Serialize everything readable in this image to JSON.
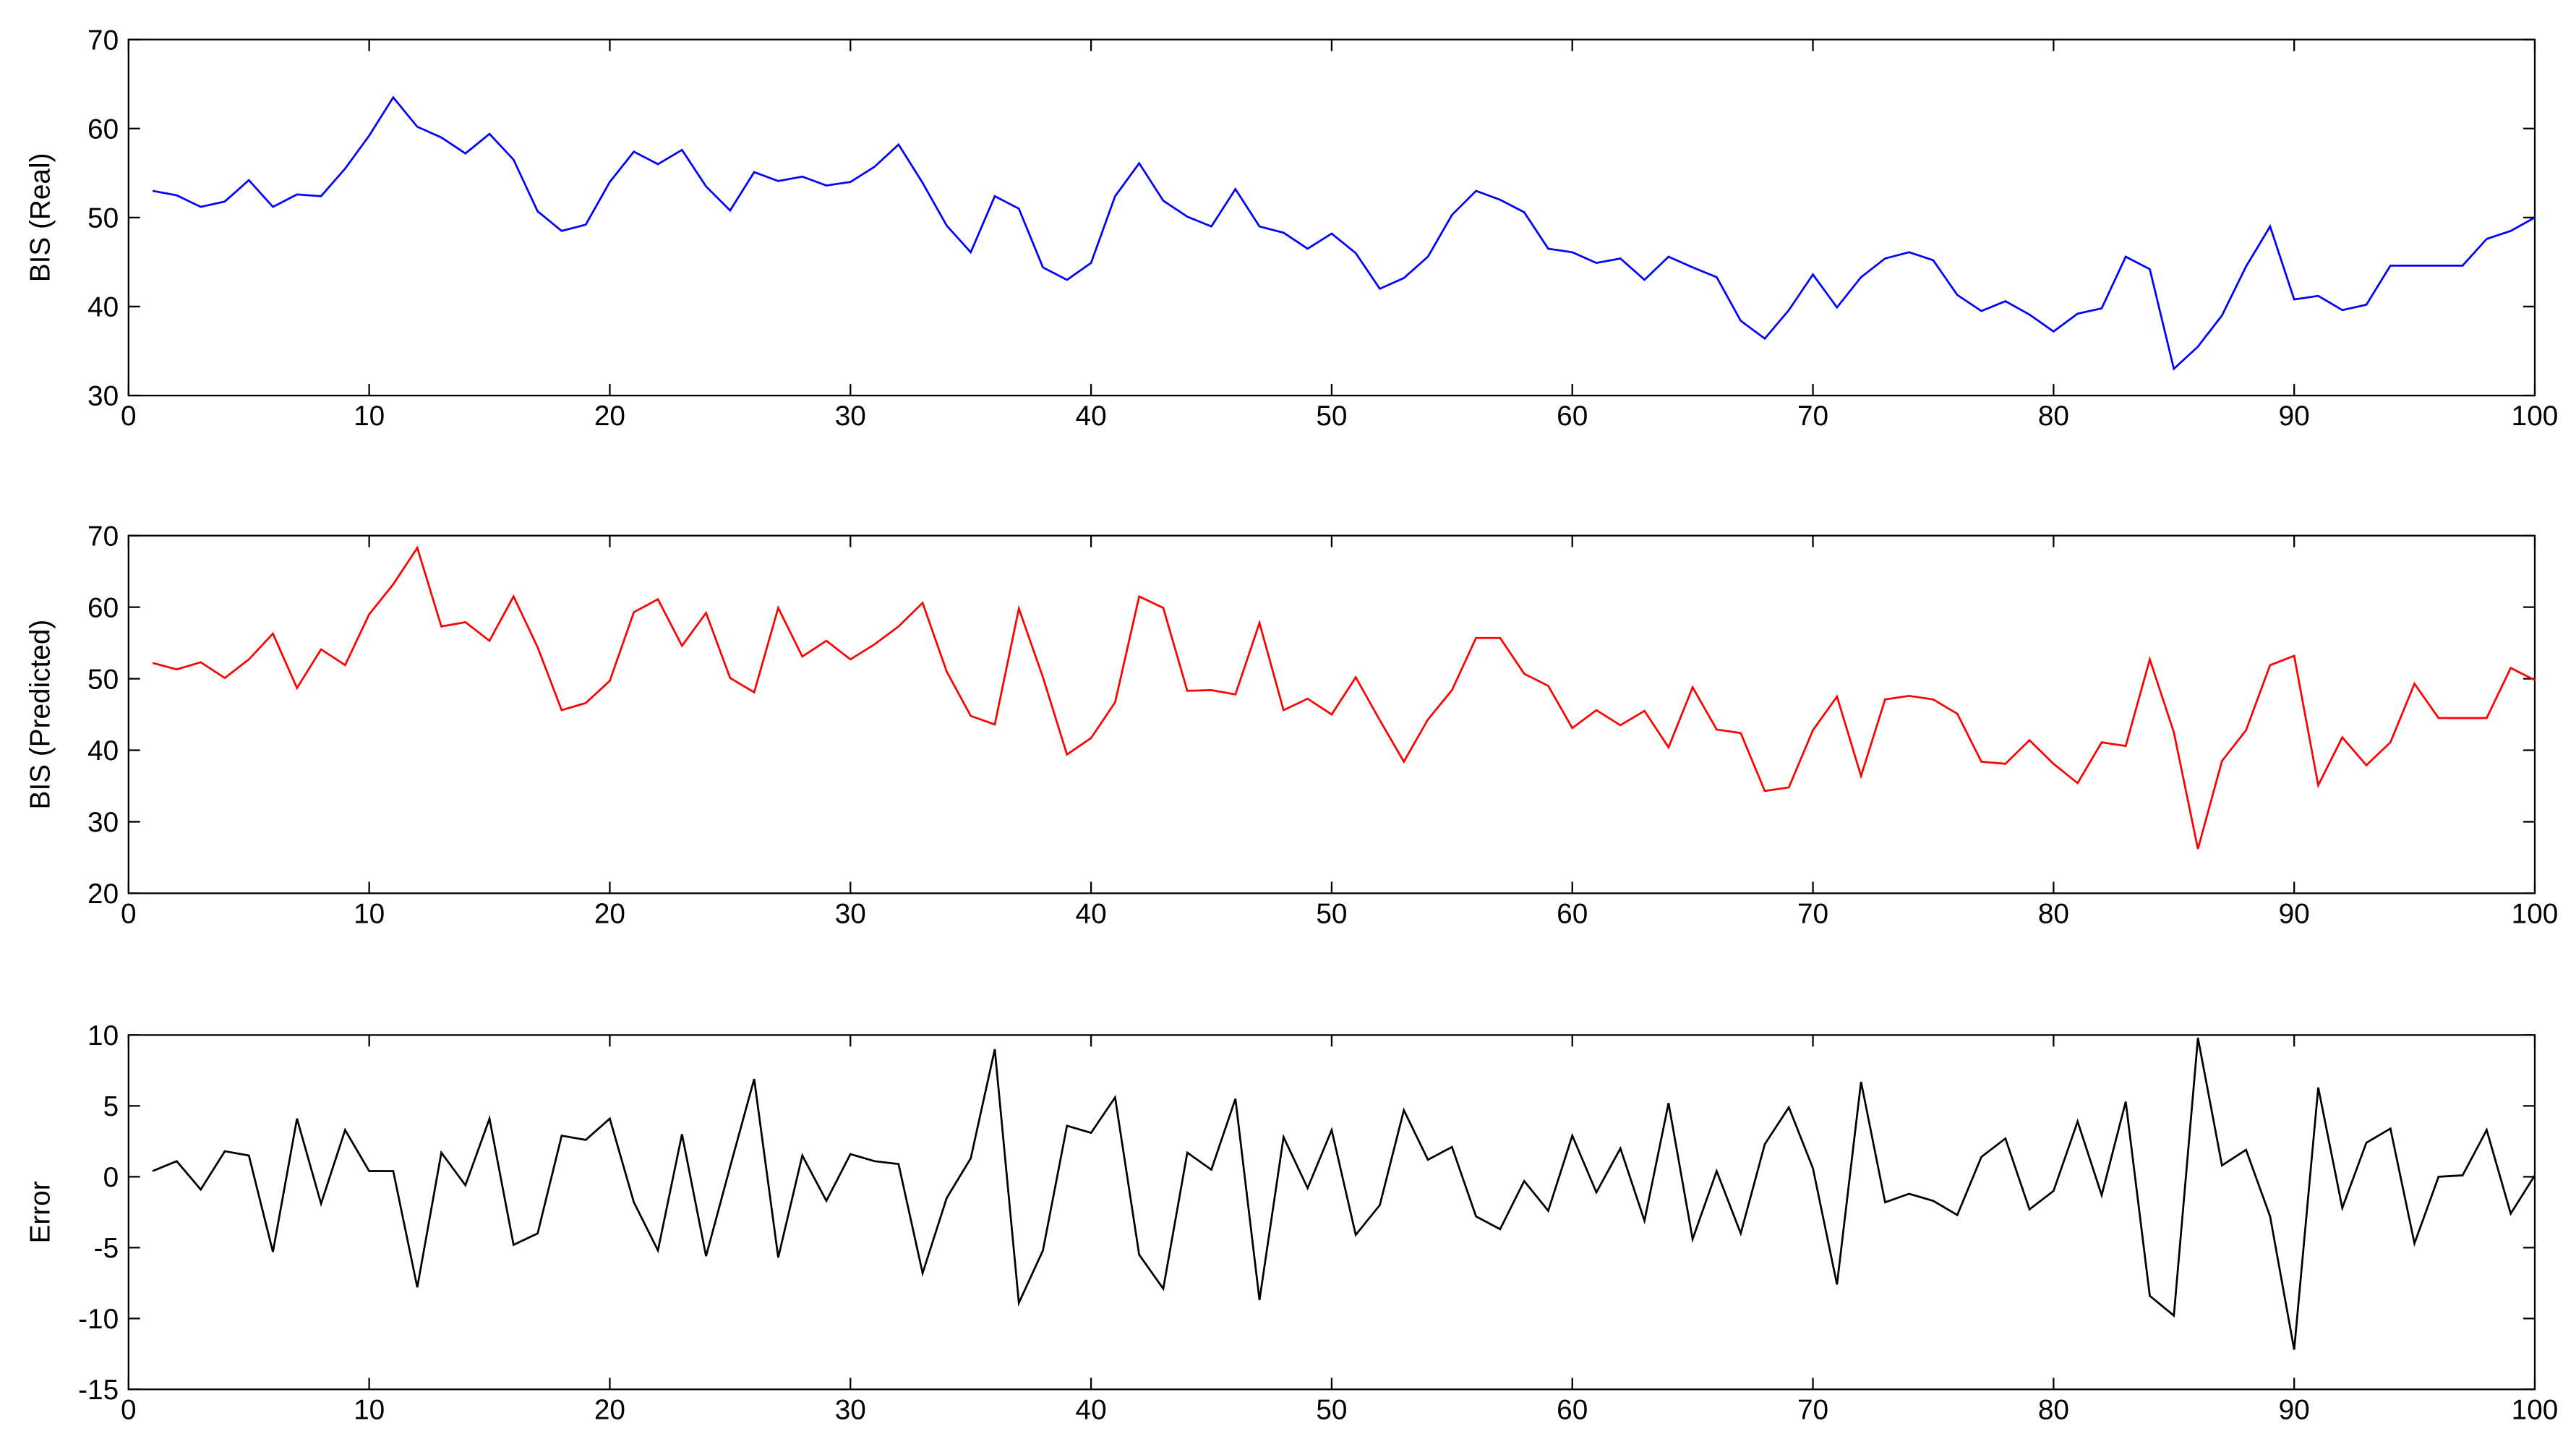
{
  "chart_data": [
    {
      "type": "line",
      "ylabel": "BIS (Real)",
      "xlim": [
        0,
        100
      ],
      "ylim": [
        30,
        70
      ],
      "xticks": [
        0,
        10,
        20,
        30,
        40,
        50,
        60,
        70,
        80,
        90,
        100
      ],
      "yticks": [
        30,
        40,
        50,
        60,
        70
      ],
      "x": [
        1,
        2,
        3,
        4,
        5,
        6,
        7,
        8,
        9,
        10,
        11,
        12,
        13,
        14,
        15,
        16,
        17,
        18,
        19,
        20,
        21,
        22,
        23,
        24,
        25,
        26,
        27,
        28,
        29,
        30,
        31,
        32,
        33,
        34,
        35,
        36,
        37,
        38,
        39,
        40,
        41,
        42,
        43,
        44,
        45,
        46,
        47,
        48,
        49,
        50,
        51,
        52,
        53,
        54,
        55,
        56,
        57,
        58,
        59,
        60,
        61,
        62,
        63,
        64,
        65,
        66,
        67,
        68,
        69,
        70,
        71,
        72,
        73,
        74,
        75,
        76,
        77,
        78,
        79,
        80,
        81,
        82,
        83,
        84,
        85,
        86,
        87,
        88,
        89,
        90,
        91,
        92,
        93,
        94,
        95,
        96,
        97,
        98,
        99,
        100
      ],
      "series": [
        {
          "color": "#0000ff",
          "values": [
            53,
            52.5,
            51.2,
            51.8,
            54.2,
            51.2,
            52.6,
            52.4,
            55.5,
            59.2,
            63.5,
            60.2,
            59,
            57.2,
            59.4,
            56.5,
            50.7,
            48.5,
            49.2,
            54,
            57.4,
            56,
            57.6,
            53.5,
            50.8,
            55.1,
            54.1,
            54.6,
            53.6,
            54,
            55.7,
            58.2,
            53.9,
            49.1,
            46.1,
            52.4,
            51,
            44.4,
            43,
            44.9,
            52.4,
            56.1,
            51.9,
            50.1,
            49,
            53.2,
            49,
            48.3,
            46.5,
            48.2,
            46,
            42,
            43.2,
            45.6,
            50.3,
            53,
            52,
            50.6,
            46.5,
            46.1,
            44.9,
            45.4,
            43,
            45.6,
            44.4,
            43.3,
            38.4,
            36.4,
            39.6,
            43.6,
            39.9,
            43.3,
            45.4,
            46.1,
            45.2,
            41.3,
            39.5,
            40.6,
            39.1,
            37.2,
            39.2,
            39.8,
            45.6,
            44.2,
            33,
            35.5,
            39,
            44.5,
            49,
            40.8,
            41.2,
            39.6,
            40.2,
            44.6,
            44.6,
            44.6,
            44.6,
            47.6,
            48.5,
            50
          ]
        }
      ]
    },
    {
      "type": "line",
      "ylabel": "BIS (Predicted)",
      "xlim": [
        0,
        100
      ],
      "ylim": [
        20,
        70
      ],
      "xticks": [
        0,
        10,
        20,
        30,
        40,
        50,
        60,
        70,
        80,
        90,
        100
      ],
      "yticks": [
        20,
        30,
        40,
        50,
        60,
        70
      ],
      "x": [
        1,
        2,
        3,
        4,
        5,
        6,
        7,
        8,
        9,
        10,
        11,
        12,
        13,
        14,
        15,
        16,
        17,
        18,
        19,
        20,
        21,
        22,
        23,
        24,
        25,
        26,
        27,
        28,
        29,
        30,
        31,
        32,
        33,
        34,
        35,
        36,
        37,
        38,
        39,
        40,
        41,
        42,
        43,
        44,
        45,
        46,
        47,
        48,
        49,
        50,
        51,
        52,
        53,
        54,
        55,
        56,
        57,
        58,
        59,
        60,
        61,
        62,
        63,
        64,
        65,
        66,
        67,
        68,
        69,
        70,
        71,
        72,
        73,
        74,
        75,
        76,
        77,
        78,
        79,
        80,
        81,
        82,
        83,
        84,
        85,
        86,
        87,
        88,
        89,
        90,
        91,
        92,
        93,
        94,
        95,
        96,
        97,
        98,
        99,
        100
      ],
      "series": [
        {
          "color": "#ff0000",
          "values": [
            52.2,
            51.3,
            52.3,
            50.1,
            52.7,
            56.3,
            48.7,
            54.1,
            51.9,
            59,
            63.2,
            68.3,
            57.3,
            57.9,
            55.3,
            61.5,
            54.4,
            45.6,
            46.6,
            49.7,
            59.3,
            61.1,
            54.6,
            59.2,
            50.1,
            48.1,
            59.9,
            53.1,
            55.3,
            52.7,
            54.8,
            57.3,
            60.6,
            51,
            44.8,
            43.6,
            59.8,
            50.2,
            39.4,
            41.7,
            46.7,
            61.5,
            59.9,
            48.3,
            48.4,
            47.8,
            57.8,
            45.6,
            47.2,
            45,
            50.2,
            44.2,
            38.4,
            44.3,
            48.4,
            55.7,
            55.7,
            50.7,
            49,
            43.1,
            45.6,
            43.5,
            45.5,
            40.4,
            48.8,
            42.9,
            42.4,
            34.3,
            34.8,
            42.8,
            47.5,
            36.4,
            47.1,
            47.6,
            47.1,
            45.1,
            38.4,
            38.1,
            41.4,
            38.1,
            35.4,
            41.1,
            40.6,
            52.7,
            42.5,
            26.2,
            38.5,
            42.8,
            51.9,
            53.2,
            35.1,
            41.8,
            37.9,
            41.1,
            49.3,
            44.5,
            44.5,
            44.5,
            51.5,
            49.8
          ]
        }
      ]
    },
    {
      "type": "line",
      "ylabel": "Error",
      "xlim": [
        0,
        100
      ],
      "ylim": [
        -15,
        10
      ],
      "xticks": [
        0,
        10,
        20,
        30,
        40,
        50,
        60,
        70,
        80,
        90,
        100
      ],
      "yticks": [
        -15,
        -10,
        -5,
        0,
        5,
        10
      ],
      "x": [
        1,
        2,
        3,
        4,
        5,
        6,
        7,
        8,
        9,
        10,
        11,
        12,
        13,
        14,
        15,
        16,
        17,
        18,
        19,
        20,
        21,
        22,
        23,
        24,
        25,
        26,
        27,
        28,
        29,
        30,
        31,
        32,
        33,
        34,
        35,
        36,
        37,
        38,
        39,
        40,
        41,
        42,
        43,
        44,
        45,
        46,
        47,
        48,
        49,
        50,
        51,
        52,
        53,
        54,
        55,
        56,
        57,
        58,
        59,
        60,
        61,
        62,
        63,
        64,
        65,
        66,
        67,
        68,
        69,
        70,
        71,
        72,
        73,
        74,
        75,
        76,
        77,
        78,
        79,
        80,
        81,
        82,
        83,
        84,
        85,
        86,
        87,
        88,
        89,
        90,
        91,
        92,
        93,
        94,
        95,
        96,
        97,
        98,
        99,
        100
      ],
      "series": [
        {
          "color": "#000000",
          "values": [
            0.4,
            1.1,
            -0.9,
            1.8,
            1.5,
            -5.3,
            4.1,
            -1.9,
            3.3,
            0.4,
            0.4,
            -7.8,
            1.7,
            -0.6,
            4.1,
            -4.8,
            -4,
            2.9,
            2.6,
            4.1,
            -1.8,
            -5.2,
            3,
            -5.6,
            0.7,
            6.9,
            -5.7,
            1.5,
            -1.7,
            1.6,
            1.1,
            0.9,
            -6.8,
            -1.5,
            1.3,
            9,
            -8.9,
            -5.2,
            3.6,
            3.1,
            5.6,
            -5.5,
            -7.9,
            1.7,
            0.5,
            5.5,
            -8.7,
            2.8,
            -0.8,
            3.3,
            -4.1,
            -2,
            4.7,
            1.2,
            2.1,
            -2.8,
            -3.7,
            -0.3,
            -2.4,
            2.9,
            -1.1,
            2,
            -3.1,
            5.2,
            -4.4,
            0.4,
            -4,
            2.3,
            4.9,
            0.6,
            -7.6,
            6.7,
            -1.8,
            -1.2,
            -1.7,
            -2.7,
            1.4,
            2.7,
            -2.3,
            -1,
            3.9,
            -1.3,
            5.3,
            -8.4,
            -9.8,
            9.8,
            0.8,
            1.9,
            -2.8,
            -12.2,
            6.3,
            -2.2,
            2.4,
            3.4,
            -4.7,
            0,
            0.1,
            3.3,
            -2.6,
            0.1
          ]
        }
      ]
    }
  ]
}
